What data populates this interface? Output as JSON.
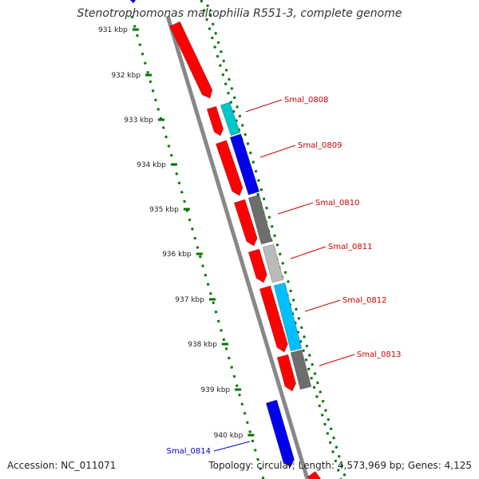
{
  "title": "Stenotrophomonas maltophilia R551-3, complete genome",
  "footer": {
    "accession": "Accession: NC_011071",
    "summary": "Topology: circular; Length: 4,573,969 bp; Genes: 4,125"
  },
  "scale": {
    "ticks": [
      "931 kbp",
      "932 kbp",
      "933 kbp",
      "934 kbp",
      "935 kbp",
      "936 kbp",
      "937 kbp",
      "938 kbp",
      "939 kbp",
      "940 kbp"
    ],
    "color": "#007700"
  },
  "backbone_color": "#888888",
  "gene_labels": [
    {
      "text": "Smal_0808",
      "color": "#cc0000"
    },
    {
      "text": "Smal_0809",
      "color": "#cc0000"
    },
    {
      "text": "Smal_0810",
      "color": "#cc0000"
    },
    {
      "text": "Smal_0811",
      "color": "#cc0000"
    },
    {
      "text": "Smal_0812",
      "color": "#cc0000"
    },
    {
      "text": "Smal_0813",
      "color": "#cc0000"
    },
    {
      "text": "Smal_0814",
      "color": "#0000cc"
    }
  ],
  "colors": {
    "red": "#ff0000",
    "blue": "#0000ee",
    "teal": "#00c8c8",
    "cyan": "#00c0ff",
    "darkgray": "#6e6e6e",
    "lightgray": "#bbbbbb"
  }
}
